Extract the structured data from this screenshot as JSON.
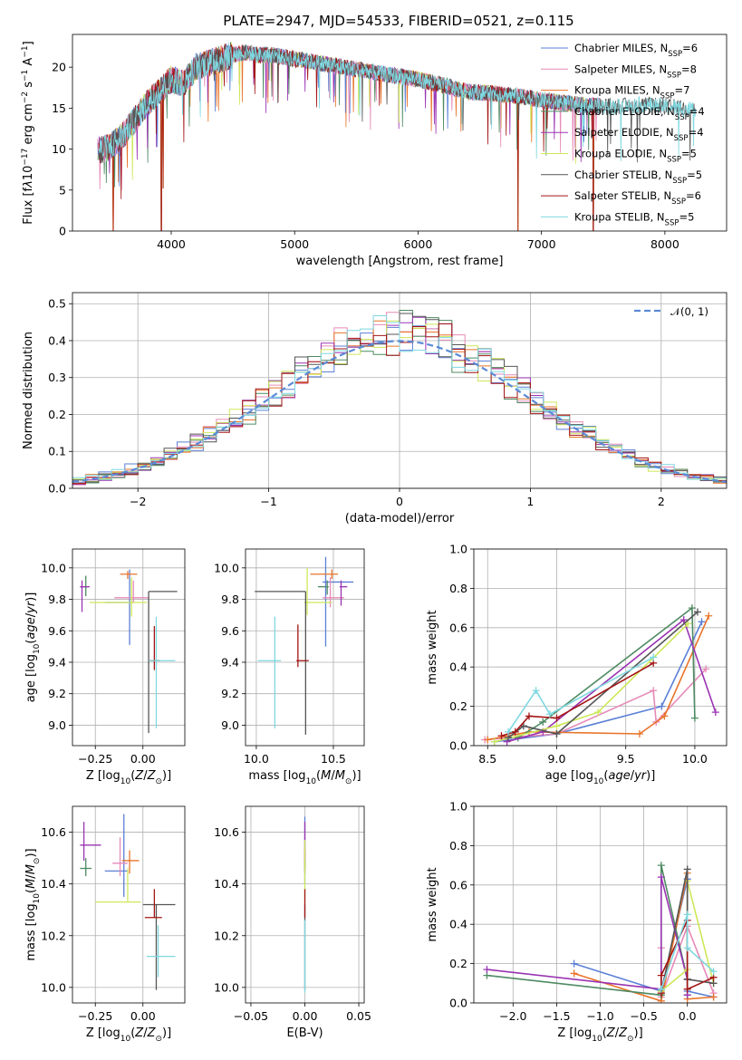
{
  "figure": {
    "title": "PLATE=2947, MJD=54533, FIBERID=0521, z=0.115"
  },
  "models": [
    {
      "label": "Chabrier MILES, N<sub>SSP</sub>=6",
      "imf": "Chabrier",
      "lib": "MILES",
      "n_ssp": 6,
      "color": "#5b7fd6"
    },
    {
      "label": "Salpeter MILES, N<sub>SSP</sub>=8",
      "imf": "Salpeter",
      "lib": "MILES",
      "n_ssp": 8,
      "color": "#e68ab8"
    },
    {
      "label": "Kroupa MILES, N<sub>SSP</sub>=7",
      "imf": "Kroupa",
      "lib": "MILES",
      "n_ssp": 7,
      "color": "#e8742a"
    },
    {
      "label": "Chabrier ELODIE, N<sub>SSP</sub>=4",
      "imf": "Chabrier",
      "lib": "ELODIE",
      "n_ssp": 4,
      "color": "#4e8a62"
    },
    {
      "label": "Salpeter ELODIE, N<sub>SSP</sub>=4",
      "imf": "Salpeter",
      "lib": "ELODIE",
      "n_ssp": 4,
      "color": "#9a34b2"
    },
    {
      "label": "Kroupa ELODIE, N<sub>SSP</sub>=5",
      "imf": "Kroupa",
      "lib": "ELODIE",
      "n_ssp": 5,
      "color": "#cde85a"
    },
    {
      "label": "Chabrier STELIB, N<sub>SSP</sub>=5",
      "imf": "Chabrier",
      "lib": "STELIB",
      "n_ssp": 5,
      "color": "#555555"
    },
    {
      "label": "Salpeter STELIB, N<sub>SSP</sub>=6",
      "imf": "Salpeter",
      "lib": "STELIB",
      "n_ssp": 6,
      "color": "#a31515"
    },
    {
      "label": "Kroupa STELIB, N<sub>SSP</sub>=5",
      "imf": "Kroupa",
      "lib": "STELIB",
      "n_ssp": 5,
      "color": "#7fd8e0"
    }
  ],
  "chart_data": [
    {
      "id": "spectrum",
      "type": "line",
      "xlabel": "wavelength [Angstrom, rest frame]",
      "ylabel": "Flux [f<tspan font-style='italic'>λ</tspan>10<tspan baseline-shift='super' font-size='9'>−17</tspan> erg cm<tspan baseline-shift='super' font-size='9'>−2</tspan> s<tspan baseline-shift='super' font-size='9'>−1</tspan> A<tspan baseline-shift='super' font-size='9'>−1</tspan>]",
      "xlim": [
        3200,
        8500
      ],
      "ylim": [
        0,
        24
      ],
      "xticks": [
        4000,
        5000,
        6000,
        7000,
        8000
      ],
      "yticks": [
        0,
        5,
        10,
        15,
        20
      ],
      "grid": false,
      "legend_position": "upper right",
      "x": [
        3400,
        3500,
        3600,
        3700,
        3800,
        3900,
        4000,
        4100,
        4200,
        4300,
        4400,
        4500,
        4600,
        4700,
        4800,
        4900,
        5000,
        5200,
        5400,
        5600,
        5800,
        6000,
        6200,
        6400,
        6600,
        6800,
        7000,
        7200,
        7400,
        7600,
        7800,
        8000,
        8200
      ],
      "y": [
        9.8,
        10.2,
        11.5,
        13.5,
        15.5,
        17.0,
        18.5,
        18.0,
        20.0,
        20.5,
        21.0,
        21.5,
        21.8,
        21.5,
        21.5,
        21.3,
        21.0,
        20.5,
        20.0,
        19.5,
        19.0,
        18.5,
        17.8,
        17.0,
        16.8,
        16.5,
        16.0,
        15.6,
        15.3,
        15.2,
        15.4,
        15.2,
        14.9
      ],
      "dips": [
        {
          "x": 3530,
          "to": 0
        },
        {
          "x": 3920,
          "to": 0
        },
        {
          "x": 3935,
          "to": 5.2
        },
        {
          "x": 6810,
          "to": 0
        },
        {
          "x": 7420,
          "to": 0
        }
      ]
    },
    {
      "id": "residuals",
      "type": "histogram",
      "xlabel": "(data-model)/error",
      "ylabel": "Normed distribution",
      "xlim": [
        -2.5,
        2.5
      ],
      "ylim": [
        0,
        0.53
      ],
      "xticks": [
        -2,
        -1,
        0,
        1,
        2
      ],
      "yticks": [
        0.0,
        0.1,
        0.2,
        0.3,
        0.4,
        0.5
      ],
      "grid": true,
      "legend_position": "upper right",
      "reference_label": "𝒩(0, 1)",
      "reference_color": "#5b8ad6",
      "bin_width": 0.1
    },
    {
      "id": "age-vs-z",
      "type": "scatter",
      "xlabel": "Z [log<tspan baseline-shift='sub' font-size='9'>10</tspan>(<tspan font-style='italic'>Z</tspan>/<tspan font-style='italic'>Z</tspan><tspan baseline-shift='sub' font-size='9'>⊙</tspan>)]",
      "ylabel": "age  [log<tspan baseline-shift='sub' font-size='9'>10</tspan>(<tspan font-style='italic'>age</tspan>/<tspan font-style='italic'>yr</tspan>)]",
      "xlim": [
        -0.37,
        0.22
      ],
      "ylim": [
        8.87,
        10.12
      ],
      "xticks": [
        -0.25,
        0.0
      ],
      "xticklabels": [
        "−0.25",
        "0.00"
      ],
      "yticks": [
        9.0,
        9.2,
        9.4,
        9.6,
        9.8,
        10.0
      ],
      "grid": true,
      "points": [
        {
          "x": -0.07,
          "y": 9.78,
          "xerr": [
            0.13,
            0.02
          ],
          "yerr": [
            0.27,
            0.21
          ]
        },
        {
          "x": -0.05,
          "y": 9.81,
          "xerr": [
            0.1,
            0.08
          ],
          "yerr": [
            0.03,
            0.11
          ]
        },
        {
          "x": -0.08,
          "y": 9.96,
          "xerr": [
            0.04,
            0.05
          ],
          "yerr": [
            0.03,
            0.02
          ]
        },
        {
          "x": -0.3,
          "y": 9.88,
          "xerr": [
            0.03,
            0.01
          ],
          "yerr": [
            0.06,
            0.07
          ]
        },
        {
          "x": -0.32,
          "y": 9.88,
          "xerr": [
            0.01,
            0.04
          ],
          "yerr": [
            0.16,
            0.04
          ]
        },
        {
          "x": -0.06,
          "y": 9.78,
          "xerr": [
            0.22,
            0.08
          ],
          "yerr": [
            0.09,
            0.16
          ]
        },
        {
          "x": 0.03,
          "y": 9.85,
          "xerr": [
            0.0,
            0.15
          ],
          "yerr": [
            0.9,
            0.0
          ]
        },
        {
          "x": 0.06,
          "y": 9.41,
          "xerr": [
            0.03,
            0.03
          ],
          "yerr": [
            0.06,
            0.22
          ]
        },
        {
          "x": 0.07,
          "y": 9.41,
          "xerr": [
            0.04,
            0.1
          ],
          "yerr": [
            0.43,
            0.28
          ]
        }
      ]
    },
    {
      "id": "age-vs-mass",
      "type": "scatter",
      "xlabel": "mass [log<tspan baseline-shift='sub' font-size='9'>10</tspan>(<tspan font-style='italic'>M</tspan>/<tspan font-style='italic'>M</tspan><tspan baseline-shift='sub' font-size='9'>⊙</tspan>)]",
      "ylabel": "",
      "xlim": [
        9.93,
        10.7
      ],
      "ylim": [
        8.87,
        10.12
      ],
      "xticks": [
        10.0,
        10.5
      ],
      "xticklabels": [
        "10.0",
        "10.5"
      ],
      "yticks": [
        9.0,
        9.2,
        9.4,
        9.6,
        9.8,
        10.0
      ],
      "grid": true,
      "points": [
        {
          "x": 10.45,
          "y": 9.91,
          "xerr": [
            0.02,
            0.18
          ],
          "yerr": [
            0.41,
            0.16
          ]
        },
        {
          "x": 10.48,
          "y": 9.81,
          "xerr": [
            0.05,
            0.09
          ],
          "yerr": [
            0.06,
            0.13
          ]
        },
        {
          "x": 10.49,
          "y": 9.96,
          "xerr": [
            0.14,
            0.04
          ],
          "yerr": [
            0.03,
            0.03
          ]
        },
        {
          "x": 10.46,
          "y": 9.88,
          "xerr": [
            0.06,
            0.01
          ],
          "yerr": [
            0.05,
            0.04
          ]
        },
        {
          "x": 10.55,
          "y": 9.88,
          "xerr": [
            0.01,
            0.04
          ],
          "yerr": [
            0.12,
            0.04
          ]
        },
        {
          "x": 10.33,
          "y": 9.78,
          "xerr": [
            0.02,
            0.16
          ],
          "yerr": [
            0.08,
            0.22
          ]
        },
        {
          "x": 10.32,
          "y": 9.85,
          "xerr": [
            0.33,
            0.0
          ],
          "yerr": [
            0.91,
            0.0
          ]
        },
        {
          "x": 10.27,
          "y": 9.41,
          "xerr": [
            0.01,
            0.07
          ],
          "yerr": [
            0.04,
            0.23
          ]
        },
        {
          "x": 10.12,
          "y": 9.41,
          "xerr": [
            0.11,
            0.04
          ],
          "yerr": [
            0.43,
            0.28
          ]
        }
      ]
    },
    {
      "id": "weight-vs-age",
      "type": "line",
      "xlabel": "age  [log<tspan baseline-shift='sub' font-size='9'>10</tspan>(<tspan font-style='italic'>age</tspan>/<tspan font-style='italic'>yr</tspan>)]",
      "ylabel": "mass weight",
      "xlim": [
        8.4,
        10.23
      ],
      "ylim": [
        0,
        1.0
      ],
      "xticks": [
        8.5,
        9.0,
        9.5,
        10.0
      ],
      "yticks": [
        0.0,
        0.2,
        0.4,
        0.6,
        0.8,
        1.0
      ],
      "grid": true,
      "series": [
        {
          "x": [
            8.55,
            9.0,
            9.76,
            10.05
          ],
          "y": [
            0.02,
            0.06,
            0.2,
            0.63
          ]
        },
        {
          "x": [
            8.48,
            9.0,
            9.7,
            9.72,
            10.08
          ],
          "y": [
            0.03,
            0.06,
            0.28,
            0.12,
            0.39
          ]
        },
        {
          "x": [
            8.5,
            8.8,
            9.6,
            9.78,
            10.1
          ],
          "y": [
            0.03,
            0.07,
            0.06,
            0.15,
            0.66
          ]
        },
        {
          "x": [
            8.72,
            8.9,
            9.98,
            10.0
          ],
          "y": [
            0.04,
            0.12,
            0.7,
            0.14
          ]
        },
        {
          "x": [
            8.64,
            8.9,
            9.92,
            10.15
          ],
          "y": [
            0.02,
            0.07,
            0.64,
            0.17
          ]
        },
        {
          "x": [
            8.55,
            9.0,
            9.3,
            9.95
          ],
          "y": [
            0.02,
            0.1,
            0.17,
            0.62
          ]
        },
        {
          "x": [
            8.65,
            8.76,
            9.0,
            10.02
          ],
          "y": [
            0.04,
            0.1,
            0.06,
            0.68
          ]
        },
        {
          "x": [
            8.6,
            8.7,
            8.8,
            9.0,
            9.7
          ],
          "y": [
            0.05,
            0.07,
            0.15,
            0.14,
            0.42
          ]
        },
        {
          "x": [
            8.65,
            8.85,
            8.95,
            9.7
          ],
          "y": [
            0.07,
            0.28,
            0.16,
            0.45
          ]
        }
      ]
    },
    {
      "id": "mass-vs-z",
      "type": "scatter",
      "xlabel": "Z [log<tspan baseline-shift='sub' font-size='9'>10</tspan>(<tspan font-style='italic'>Z</tspan>/<tspan font-style='italic'>Z</tspan><tspan baseline-shift='sub' font-size='9'>⊙</tspan>)]",
      "ylabel": "mass [log<tspan baseline-shift='sub' font-size='9'>10</tspan>(<tspan font-style='italic'>M</tspan>/<tspan font-style='italic'>M</tspan><tspan baseline-shift='sub' font-size='9'>⊙</tspan>)]",
      "xlim": [
        -0.37,
        0.22
      ],
      "ylim": [
        9.94,
        10.7
      ],
      "xticks": [
        -0.25,
        0.0
      ],
      "xticklabels": [
        "−0.25",
        "0.00"
      ],
      "yticks": [
        10.0,
        10.2,
        10.4,
        10.6
      ],
      "grid": true,
      "points": [
        {
          "x": -0.1,
          "y": 10.45,
          "xerr": [
            0.1,
            0.02
          ],
          "yerr": [
            0.1,
            0.22
          ]
        },
        {
          "x": -0.12,
          "y": 10.48,
          "xerr": [
            0.04,
            0.04
          ],
          "yerr": [
            0.05,
            0.1
          ]
        },
        {
          "x": -0.07,
          "y": 10.49,
          "xerr": [
            0.04,
            0.05
          ],
          "yerr": [
            0.05,
            0.04
          ]
        },
        {
          "x": -0.3,
          "y": 10.46,
          "xerr": [
            0.03,
            0.03
          ],
          "yerr": [
            0.03,
            0.04
          ]
        },
        {
          "x": -0.31,
          "y": 10.55,
          "xerr": [
            0.02,
            0.09
          ],
          "yerr": [
            0.06,
            0.09
          ]
        },
        {
          "x": -0.08,
          "y": 10.33,
          "xerr": [
            0.17,
            0.07
          ],
          "yerr": [
            0.0,
            0.13
          ]
        },
        {
          "x": 0.07,
          "y": 10.32,
          "xerr": [
            0.07,
            0.1
          ],
          "yerr": [
            0.33,
            0.0
          ]
        },
        {
          "x": 0.06,
          "y": 10.27,
          "xerr": [
            0.05,
            0.04
          ],
          "yerr": [
            0.0,
            0.11
          ]
        },
        {
          "x": 0.08,
          "y": 10.12,
          "xerr": [
            0.06,
            0.09
          ],
          "yerr": [
            0.08,
            0.12
          ]
        }
      ]
    },
    {
      "id": "mass-vs-ebv",
      "type": "scatter",
      "xlabel": "E(B-V)",
      "ylabel": "",
      "xlim": [
        -0.055,
        0.055
      ],
      "ylim": [
        9.94,
        10.7
      ],
      "xticks": [
        -0.05,
        0.0,
        0.05
      ],
      "xticklabels": [
        "−0.05",
        "0.00",
        "0.05"
      ],
      "yticks": [
        10.0,
        10.2,
        10.4,
        10.6
      ],
      "grid": true,
      "points": [
        {
          "x": 0.0,
          "y": 10.45,
          "xerr": [
            0,
            0
          ],
          "yerr": [
            0.05,
            0.21
          ]
        },
        {
          "x": 0.0,
          "y": 10.48,
          "xerr": [
            0,
            0
          ],
          "yerr": [
            0.03,
            0.1
          ]
        },
        {
          "x": 0.0,
          "y": 10.49,
          "xerr": [
            0,
            0
          ],
          "yerr": [
            0.03,
            0.04
          ]
        },
        {
          "x": 0.0,
          "y": 10.46,
          "xerr": [
            0,
            0
          ],
          "yerr": [
            0.02,
            0.03
          ]
        },
        {
          "x": 0.0,
          "y": 10.55,
          "xerr": [
            0,
            0
          ],
          "yerr": [
            0.06,
            0.09
          ]
        },
        {
          "x": 0.0,
          "y": 10.33,
          "xerr": [
            0,
            0
          ],
          "yerr": [
            0.0,
            0.24
          ]
        },
        {
          "x": 0.0,
          "y": 10.32,
          "xerr": [
            0,
            0
          ],
          "yerr": [
            0.33,
            0.0
          ]
        },
        {
          "x": 0.0,
          "y": 10.27,
          "xerr": [
            0,
            0
          ],
          "yerr": [
            0.0,
            0.11
          ]
        },
        {
          "x": 0.0,
          "y": 10.12,
          "xerr": [
            0,
            0
          ],
          "yerr": [
            0.14,
            0.14
          ]
        }
      ]
    },
    {
      "id": "weight-vs-z",
      "type": "line",
      "xlabel": "Z [log<tspan baseline-shift='sub' font-size='9'>10</tspan>(<tspan font-style='italic'>Z</tspan>/<tspan font-style='italic'>Z</tspan><tspan baseline-shift='sub' font-size='9'>⊙</tspan>)]",
      "ylabel": "mass weight",
      "xlim": [
        -2.45,
        0.45
      ],
      "ylim": [
        0,
        1.0
      ],
      "xticks": [
        -2.0,
        -1.5,
        -1.0,
        -0.5,
        0.0
      ],
      "xticklabels": [
        "−2.0",
        "−1.5",
        "−1.0",
        "−0.5",
        "0.0"
      ],
      "yticks": [
        0.0,
        0.2,
        0.4,
        0.6,
        0.8,
        1.0
      ],
      "grid": true,
      "series": [
        {
          "x": [
            -1.3,
            -0.3,
            0.0,
            0.0,
            0.3
          ],
          "y": [
            0.2,
            0.06,
            0.63,
            0.06,
            0.03
          ]
        },
        {
          "x": [
            -0.3,
            -0.3,
            0.0,
            0.3
          ],
          "y": [
            0.28,
            0.03,
            0.39,
            0.05
          ]
        },
        {
          "x": [
            -1.3,
            -0.3,
            0.0,
            0.0,
            0.3
          ],
          "y": [
            0.15,
            0.01,
            0.66,
            0.02,
            0.03
          ]
        },
        {
          "x": [
            -2.3,
            -0.3,
            -0.3,
            0.0,
            0.0
          ],
          "y": [
            0.14,
            0.04,
            0.7,
            0.12,
            0.04
          ]
        },
        {
          "x": [
            -2.3,
            -0.3,
            -0.3,
            0.0,
            0.0
          ],
          "y": [
            0.17,
            0.07,
            0.64,
            0.12,
            0.04
          ]
        },
        {
          "x": [
            -0.3,
            0.0,
            0.0,
            0.3
          ],
          "y": [
            0.06,
            0.17,
            0.62,
            0.1
          ]
        },
        {
          "x": [
            -0.3,
            0.0,
            0.0,
            0.3
          ],
          "y": [
            0.05,
            0.68,
            0.12,
            0.1
          ]
        },
        {
          "x": [
            -0.3,
            -0.3,
            0.0,
            0.0,
            0.3
          ],
          "y": [
            0.05,
            0.14,
            0.42,
            0.07,
            0.13
          ]
        },
        {
          "x": [
            -0.3,
            0.0,
            0.0,
            0.3
          ],
          "y": [
            0.07,
            0.45,
            0.28,
            0.16
          ]
        }
      ]
    }
  ]
}
